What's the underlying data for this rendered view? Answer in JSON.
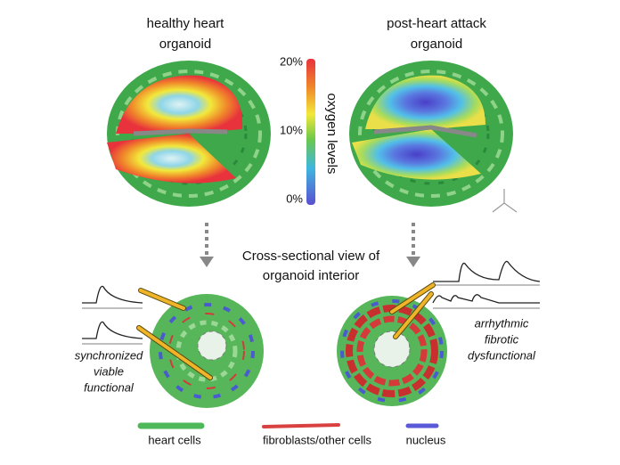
{
  "left_panel": {
    "title_lines": [
      "healthy heart",
      "organoid"
    ],
    "notes": [
      "synchronized",
      "viable",
      "functional"
    ]
  },
  "right_panel": {
    "title_lines": [
      "post-heart attack",
      "organoid"
    ],
    "notes": [
      "arrhythmic",
      "fibrotic",
      "dysfunctional"
    ]
  },
  "colorbar": {
    "label": "oxygen levels",
    "ticks": [
      "20%",
      "10%",
      "0%"
    ]
  },
  "center_caption": [
    "Cross-sectional view of",
    "organoid interior"
  ],
  "legend": [
    {
      "label": "heart cells"
    },
    {
      "label": "fibroblasts/other cells"
    },
    {
      "label": "nucleus"
    }
  ]
}
